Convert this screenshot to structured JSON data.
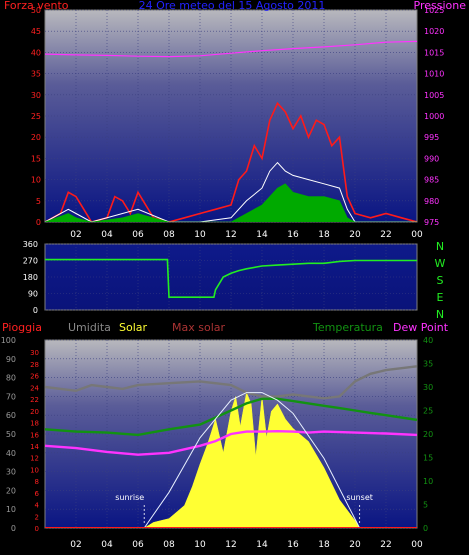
{
  "chart_data": [
    {
      "type": "line",
      "title": "24 Ore meteo del 15 Agosto 2011",
      "left_label": "Forza vento",
      "right_label": "Pressione",
      "x_ticks": [
        "02",
        "04",
        "06",
        "08",
        "10",
        "12",
        "14",
        "16",
        "18",
        "20",
        "22",
        "00"
      ],
      "y_left_ticks": [
        0,
        5,
        10,
        15,
        20,
        25,
        30,
        35,
        40,
        45,
        50
      ],
      "y_right_ticks": [
        975,
        980,
        985,
        990,
        995,
        1000,
        1005,
        1010,
        1015,
        1020,
        1025
      ],
      "ylim_left": [
        0,
        50
      ],
      "ylim_right": [
        975,
        1025
      ],
      "series": [
        {
          "name": "Pressione",
          "color": "#ff33ff",
          "x": [
            0,
            2,
            4,
            6,
            8,
            10,
            12,
            14,
            16,
            18,
            20,
            22,
            24
          ],
          "values": [
            1014.6,
            1014.4,
            1014.3,
            1014.1,
            1014.0,
            1014.2,
            1014.8,
            1015.4,
            1015.9,
            1016.3,
            1016.8,
            1017.4,
            1017.6
          ]
        },
        {
          "name": "Raffica",
          "color": "#ff1a1a",
          "x": [
            0,
            1,
            1.5,
            2,
            2.5,
            3,
            4,
            4.5,
            5,
            5.5,
            6,
            7,
            8,
            9,
            10,
            11,
            12,
            12.5,
            13,
            13.5,
            14,
            14.5,
            15,
            15.5,
            16,
            16.5,
            17,
            17.5,
            18,
            18.5,
            19,
            19.5,
            20,
            21,
            22,
            23,
            24
          ],
          "values": [
            0,
            2,
            7,
            6,
            3,
            0,
            1,
            6,
            5,
            2,
            7,
            1,
            0,
            1,
            2,
            3,
            4,
            10,
            12,
            18,
            15,
            24,
            28,
            26,
            22,
            25,
            20,
            24,
            23,
            18,
            20,
            6,
            2,
            1,
            2,
            1,
            0
          ]
        },
        {
          "name": "Vento medio",
          "color": "#ffffff",
          "x": [
            0,
            1.5,
            2,
            3,
            5,
            6,
            8,
            10,
            12,
            13,
            14,
            14.5,
            15,
            15.5,
            16,
            17,
            18,
            19,
            19.5,
            20,
            24
          ],
          "values": [
            0,
            3,
            2,
            0,
            2,
            3,
            0,
            0,
            1,
            5,
            8,
            12,
            14,
            12,
            11,
            10,
            9,
            8,
            3,
            0,
            0
          ]
        },
        {
          "name": "Vento min",
          "color": "#00aa00",
          "x": [
            0,
            1.5,
            2,
            3,
            5,
            6,
            8,
            12,
            13,
            14,
            15,
            15.5,
            16,
            17,
            18,
            19,
            19.5,
            20,
            24
          ],
          "values": [
            0,
            2,
            1,
            0,
            1,
            2,
            0,
            0,
            2,
            4,
            8,
            9,
            7,
            6,
            6,
            5,
            1,
            0,
            0
          ]
        }
      ]
    },
    {
      "type": "line",
      "title": "",
      "y_ticks": [
        0,
        90,
        180,
        270,
        360
      ],
      "right_labels": [
        "N",
        "W",
        "S",
        "E",
        "N"
      ],
      "ylim": [
        0,
        360
      ],
      "series": [
        {
          "name": "Direzione vento",
          "color": "#22ee22",
          "x": [
            0,
            1,
            2,
            3,
            4,
            5,
            6,
            7,
            7.9,
            8,
            9,
            10,
            10.5,
            10.9,
            11,
            11.5,
            12,
            12.5,
            13,
            14,
            15,
            16,
            17,
            18,
            19,
            20,
            21,
            22,
            23,
            24
          ],
          "values": [
            275,
            275,
            275,
            275,
            275,
            275,
            275,
            275,
            275,
            70,
            70,
            70,
            70,
            70,
            110,
            180,
            200,
            215,
            225,
            240,
            245,
            250,
            255,
            255,
            265,
            270,
            270,
            270,
            270,
            270
          ]
        }
      ]
    },
    {
      "type": "area",
      "title": "",
      "legend": [
        "Pioggia",
        "Umidita",
        "Solar",
        "Max solar",
        "Temperatura",
        "Dew Point"
      ],
      "x_ticks": [
        "02",
        "04",
        "06",
        "08",
        "10",
        "12",
        "14",
        "16",
        "18",
        "20",
        "22",
        "00"
      ],
      "y_left_ticks": [
        0,
        10,
        20,
        30,
        40,
        50,
        60,
        70,
        80,
        90,
        100
      ],
      "y_left2_ticks": [
        0,
        2,
        4,
        6,
        8,
        10,
        12,
        14,
        16,
        18,
        20,
        22,
        24,
        26,
        28,
        30
      ],
      "y_right_ticks": [
        0,
        5,
        10,
        15,
        20,
        25,
        30,
        35,
        40
      ],
      "ylim_humidity": [
        0,
        100
      ],
      "ylim_temperature": [
        0,
        40
      ],
      "annotations": [
        "sunrise",
        "sunset"
      ],
      "sunrise_x": 6.4,
      "sunset_x": 20.3,
      "series": [
        {
          "name": "Umidita",
          "color": "#777777",
          "axis": "humidity",
          "x": [
            0,
            2,
            3,
            4,
            5,
            6,
            8,
            10,
            12,
            13,
            14,
            15,
            16,
            17,
            18,
            19,
            20,
            21,
            22,
            23,
            24
          ],
          "values": [
            75,
            73,
            76,
            75,
            74,
            76,
            77,
            78,
            76,
            72,
            70,
            70,
            71,
            70,
            69,
            70,
            78,
            82,
            84,
            85,
            86
          ]
        },
        {
          "name": "Temperatura",
          "color": "#129212",
          "axis": "temperature",
          "x": [
            0,
            2,
            4,
            6,
            8,
            10,
            12,
            13,
            14,
            15,
            16,
            17,
            18,
            19,
            20,
            21,
            22,
            24
          ],
          "values": [
            21,
            20.5,
            20.3,
            19.8,
            21,
            22,
            25,
            26.5,
            27.5,
            27.5,
            27,
            26.5,
            26,
            25.5,
            25,
            24.5,
            24,
            23
          ]
        },
        {
          "name": "Dew Point",
          "color": "#ff33ff",
          "axis": "temperature",
          "x": [
            0,
            2,
            4,
            6,
            8,
            10,
            11,
            12,
            13,
            14,
            15,
            16,
            17,
            18,
            19,
            20,
            21,
            22,
            24
          ],
          "values": [
            17.5,
            17,
            16.2,
            15.6,
            16,
            17.5,
            18.5,
            20,
            20.5,
            20.5,
            20.6,
            20.5,
            20.3,
            20.5,
            20.4,
            20.3,
            20.2,
            20.1,
            19.8
          ]
        },
        {
          "name": "Max solar",
          "color": "#e8f0ff",
          "axis": "humidity",
          "x": [
            6.4,
            8,
            10,
            12,
            13,
            14,
            15,
            16,
            18,
            20.3
          ],
          "values": [
            0,
            19,
            48,
            68,
            72,
            72,
            68,
            61,
            37,
            0
          ]
        },
        {
          "name": "Solar",
          "color": "#ffff33",
          "axis": "humidity",
          "x": [
            6.4,
            7,
            8,
            9,
            9.5,
            10,
            10.5,
            11,
            11.5,
            12,
            12.3,
            12.6,
            13,
            13.3,
            13.6,
            14,
            14.3,
            14.6,
            15,
            15.5,
            16,
            17,
            18,
            19,
            20,
            20.3
          ],
          "values": [
            0,
            3,
            5,
            12,
            22,
            34,
            45,
            58,
            40,
            62,
            70,
            54,
            72,
            66,
            38,
            70,
            48,
            62,
            66,
            58,
            53,
            46,
            32,
            15,
            4,
            0
          ]
        },
        {
          "name": "Pioggia",
          "color": "#ff1a1a",
          "axis": "rain",
          "x": [
            0,
            24
          ],
          "values": [
            0,
            0
          ]
        }
      ]
    }
  ]
}
